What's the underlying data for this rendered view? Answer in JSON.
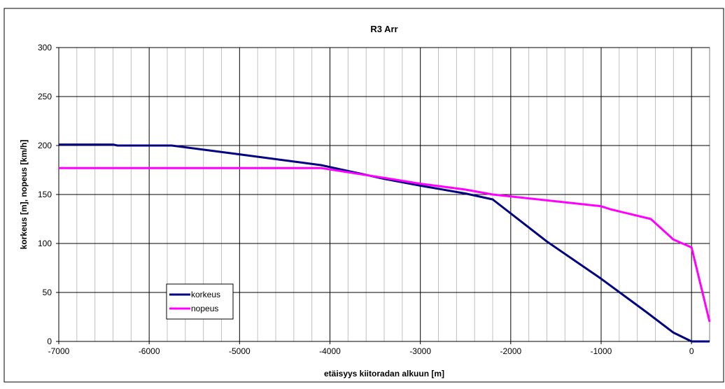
{
  "chart_data": {
    "type": "line",
    "title": "R3 Arr",
    "xlabel": "etäisyys kiitoradan alkuun [m]",
    "ylabel": "korkeus [m], nopeus [km/h]",
    "xlim": [
      -7000,
      200
    ],
    "ylim": [
      0,
      300
    ],
    "x_ticks": [
      -7000,
      -6000,
      -5000,
      -4000,
      -3000,
      -2000,
      -1000,
      0
    ],
    "x_tick_labels": [
      "-7000",
      "-6000",
      "-5000",
      "-4000",
      "-3000",
      "-2000",
      "-1000",
      "0"
    ],
    "y_ticks": [
      0,
      50,
      100,
      150,
      200,
      250,
      300
    ],
    "y_tick_labels": [
      "0",
      "50",
      "100",
      "150",
      "200",
      "250",
      "300"
    ],
    "x_minor_step": 200,
    "grid": true,
    "legend_position": "bottom-left",
    "series": [
      {
        "name": "korkeus",
        "color": "#000080",
        "points": [
          [
            -7000,
            201
          ],
          [
            -6400,
            201
          ],
          [
            -6350,
            200
          ],
          [
            -5750,
            200
          ],
          [
            -5000,
            191
          ],
          [
            -4100,
            180
          ],
          [
            -3400,
            166
          ],
          [
            -3000,
            159
          ],
          [
            -2500,
            151
          ],
          [
            -2200,
            145
          ],
          [
            -1600,
            102
          ],
          [
            -1000,
            64
          ],
          [
            -500,
            30
          ],
          [
            -200,
            9
          ],
          [
            0,
            0
          ],
          [
            200,
            0
          ]
        ]
      },
      {
        "name": "nopeus",
        "color": "#ff00ff",
        "points": [
          [
            -7000,
            177
          ],
          [
            -4100,
            177
          ],
          [
            -3400,
            167
          ],
          [
            -3000,
            161
          ],
          [
            -2500,
            155
          ],
          [
            -2200,
            150
          ],
          [
            -2000,
            148
          ],
          [
            -1500,
            143
          ],
          [
            -1000,
            138
          ],
          [
            -900,
            135
          ],
          [
            -450,
            125
          ],
          [
            -200,
            104
          ],
          [
            0,
            96
          ],
          [
            200,
            20
          ]
        ]
      }
    ]
  }
}
